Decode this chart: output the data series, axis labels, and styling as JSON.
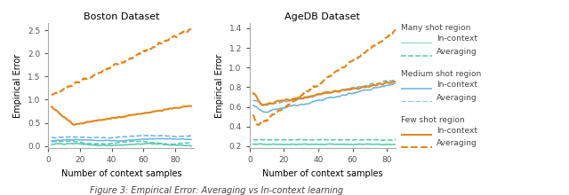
{
  "title_left": "Boston Dataset",
  "title_right": "AgeDB Dataset",
  "xlabel": "Number of context samples",
  "ylabel": "Empirical Error",
  "fig_caption": "Figure 3: Empirical Error: Averaging vs In-context learning",
  "colors": {
    "many_incontext": "#52c9a8",
    "many_averaging": "#52c9a8",
    "medium_incontext": "#6ab2e0",
    "medium_averaging": "#6ab2e0",
    "few_incontext": "#e0881a",
    "few_averaging": "#e0881a"
  },
  "legend": {
    "many_shot_label": "Many shot region",
    "medium_shot_label": "Medium shot region",
    "few_shot_label": "Few shot region",
    "incontext_label": "In-context",
    "averaging_label": "Averaging"
  },
  "boston_ylim": [
    -0.05,
    2.65
  ],
  "agedb_ylim": [
    0.18,
    1.45
  ],
  "boston_yticks": [
    0.0,
    0.5,
    1.0,
    1.5,
    2.0,
    2.5
  ],
  "agedb_yticks": [
    0.2,
    0.4,
    0.6,
    0.8,
    1.0,
    1.2,
    1.4
  ]
}
